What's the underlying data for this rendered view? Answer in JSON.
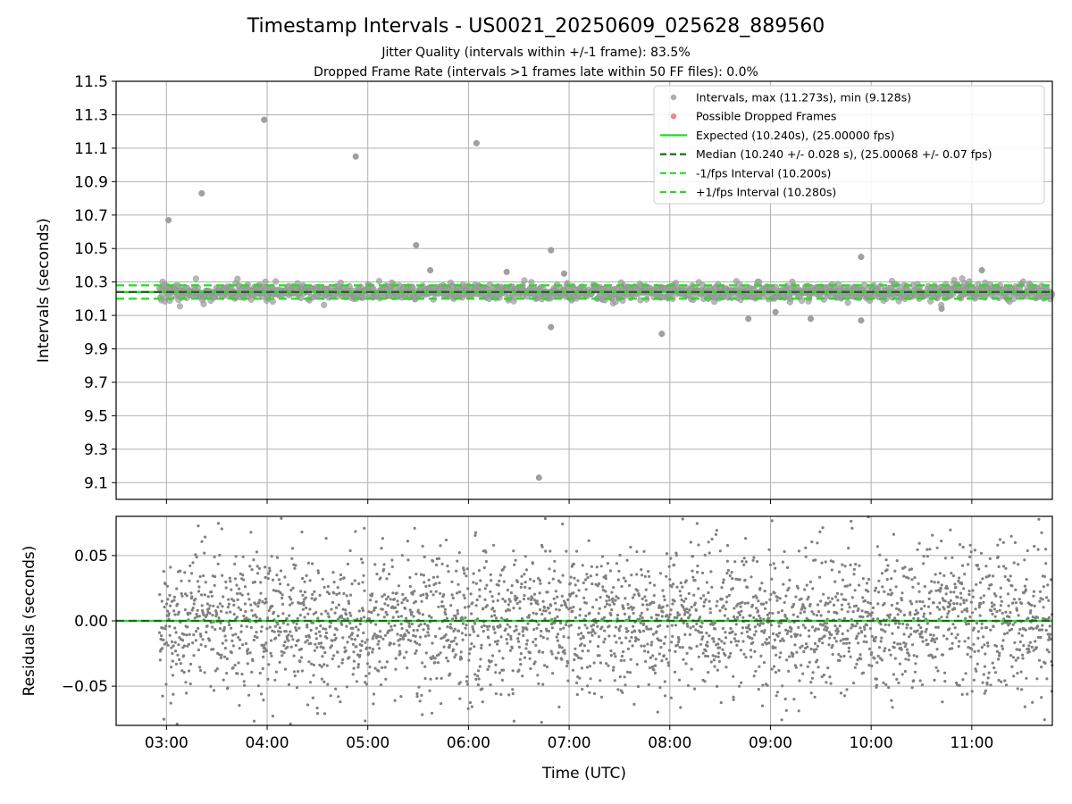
{
  "chart_data": [
    {
      "type": "scatter",
      "title": "Timestamp Intervals - US0021_20250609_025628_889560",
      "subtitle_lines": [
        "Jitter Quality (intervals within +/-1 frame): 83.5%",
        "Dropped Frame Rate (intervals >1 frames late within 50 FF files): 0.0%"
      ],
      "xlabel": "",
      "ylabel": "Intervals (seconds)",
      "xlim_hours": [
        2.5,
        11.8
      ],
      "ylim": [
        9.0,
        11.5
      ],
      "yticks": [
        9.1,
        9.3,
        9.5,
        9.7,
        9.9,
        10.1,
        10.3,
        10.5,
        10.7,
        10.9,
        11.1,
        11.3,
        11.5
      ],
      "ytick_labels": [
        "9.1",
        "9.3",
        "9.5",
        "9.7",
        "9.9",
        "10.1",
        "10.3",
        "10.5",
        "10.7",
        "10.9",
        "11.1",
        "11.3",
        "11.5"
      ],
      "grid": true,
      "legend_position": "top-right",
      "legend": [
        {
          "label": "Intervals, max (11.273s), min (9.128s)",
          "kind": "marker",
          "color": "#a0a0a0"
        },
        {
          "label": "Possible Dropped Frames",
          "kind": "marker",
          "color": "#f07070"
        },
        {
          "label": "Expected (10.240s), (25.00000 fps)",
          "kind": "line",
          "color": "#22dd22",
          "dash": false
        },
        {
          "label": "Median (10.240 +/- 0.028 s), (25.00068 +/- 0.07 fps)",
          "kind": "line",
          "color": "#1a6b1a",
          "dash": true
        },
        {
          "label": "-1/fps Interval (10.200s)",
          "kind": "line",
          "color": "#22dd22",
          "dash": true
        },
        {
          "label": "+1/fps Interval (10.280s)",
          "kind": "line",
          "color": "#22dd22",
          "dash": true
        }
      ],
      "reference_lines": {
        "expected": 10.24,
        "median": 10.24,
        "minus_one_fps": 10.2,
        "plus_one_fps": 10.28
      },
      "series": [
        {
          "name": "Intervals, max (11.273s), min (9.128s)",
          "time_range_hours": [
            2.93,
            11.8
          ],
          "median": 10.24,
          "typical_spread": 0.028,
          "outliers_x_hours": [
            3.02,
            3.35,
            3.97,
            4.88,
            5.48,
            5.62,
            6.08,
            6.38,
            6.7,
            6.82,
            6.82,
            6.95,
            7.92,
            8.78,
            9.05,
            9.4,
            9.9,
            9.9,
            10.7,
            11.1
          ],
          "outliers_y": [
            10.67,
            10.83,
            11.27,
            11.05,
            10.52,
            10.37,
            11.13,
            10.36,
            9.13,
            10.49,
            10.03,
            10.35,
            9.99,
            10.08,
            10.12,
            10.08,
            10.45,
            10.07,
            10.14,
            10.37
          ]
        }
      ]
    },
    {
      "type": "scatter",
      "xlabel": "Time (UTC)",
      "ylabel": "Residuals (seconds)",
      "xlim_hours": [
        2.5,
        11.8
      ],
      "ylim": [
        -0.08,
        0.08
      ],
      "yticks": [
        -0.05,
        0.0,
        0.05
      ],
      "ytick_labels": [
        "−0.05",
        "0.00",
        "0.05"
      ],
      "xticks_hours": [
        3,
        4,
        5,
        6,
        7,
        8,
        9,
        10,
        11
      ],
      "xtick_labels": [
        "03:00",
        "04:00",
        "05:00",
        "06:00",
        "07:00",
        "08:00",
        "09:00",
        "10:00",
        "11:00"
      ],
      "grid": true,
      "reference_line": 0.0,
      "series": [
        {
          "time_range_hours": [
            2.93,
            11.8
          ],
          "residual_spread": 0.028,
          "clip_range": [
            -0.08,
            0.08
          ]
        }
      ]
    }
  ],
  "colors": {
    "points": "#808080",
    "top_points": "#a0a0a0",
    "expected": "#22dd22",
    "median": "#1a6b1a",
    "grid": "#b0b0b0"
  }
}
